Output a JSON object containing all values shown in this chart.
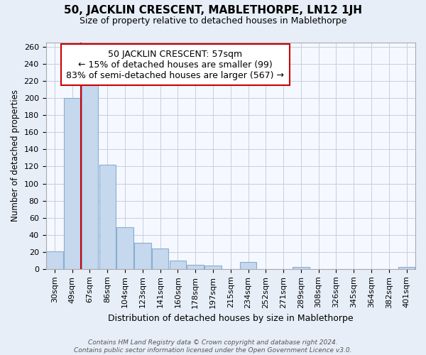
{
  "title": "50, JACKLIN CRESCENT, MABLETHORPE, LN12 1JH",
  "subtitle": "Size of property relative to detached houses in Mablethorpe",
  "xlabel": "Distribution of detached houses by size in Mablethorpe",
  "ylabel": "Number of detached properties",
  "bar_labels": [
    "30sqm",
    "49sqm",
    "67sqm",
    "86sqm",
    "104sqm",
    "123sqm",
    "141sqm",
    "160sqm",
    "178sqm",
    "197sqm",
    "215sqm",
    "234sqm",
    "252sqm",
    "271sqm",
    "289sqm",
    "308sqm",
    "326sqm",
    "345sqm",
    "364sqm",
    "382sqm",
    "401sqm"
  ],
  "bar_values": [
    21,
    200,
    215,
    122,
    49,
    31,
    24,
    10,
    5,
    4,
    0,
    8,
    0,
    0,
    2,
    0,
    0,
    0,
    0,
    0,
    2
  ],
  "bar_color": "#c5d8ed",
  "bar_edge_color": "#89aed0",
  "vline_x": 1.5,
  "vline_color": "#cc0000",
  "annotation_lines": [
    "50 JACKLIN CRESCENT: 57sqm",
    "← 15% of detached houses are smaller (99)",
    "83% of semi-detached houses are larger (567) →"
  ],
  "ylim": [
    0,
    265
  ],
  "yticks": [
    0,
    20,
    40,
    60,
    80,
    100,
    120,
    140,
    160,
    180,
    200,
    220,
    240,
    260
  ],
  "footer_line1": "Contains HM Land Registry data © Crown copyright and database right 2024.",
  "footer_line2": "Contains public sector information licensed under the Open Government Licence v3.0.",
  "bg_color": "#e8eef8",
  "plot_bg_color": "#f5f8ff",
  "grid_color": "#c5cfe0",
  "title_fontsize": 11,
  "subtitle_fontsize": 9,
  "ylabel_fontsize": 8.5,
  "xlabel_fontsize": 9,
  "tick_fontsize": 8,
  "annot_fontsize": 9,
  "footer_fontsize": 6.5
}
